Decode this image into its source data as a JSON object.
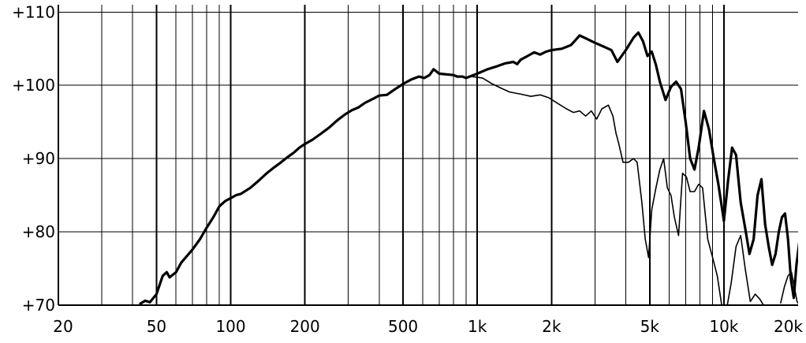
{
  "chart_data": {
    "type": "line",
    "title": "",
    "xlabel": "",
    "ylabel": "",
    "x_scale": "log",
    "xlim": [
      20,
      20000
    ],
    "ylim": [
      70,
      111
    ],
    "grid": true,
    "legend": "none",
    "x_ticks": [
      {
        "value": 20,
        "label": "20"
      },
      {
        "value": 50,
        "label": "50"
      },
      {
        "value": 100,
        "label": "100"
      },
      {
        "value": 200,
        "label": "200"
      },
      {
        "value": 500,
        "label": "500"
      },
      {
        "value": 1000,
        "label": "1k"
      },
      {
        "value": 2000,
        "label": "2k"
      },
      {
        "value": 5000,
        "label": "5k"
      },
      {
        "value": 10000,
        "label": "10k"
      },
      {
        "value": 20000,
        "label": "20k"
      }
    ],
    "y_ticks": [
      {
        "value": 70,
        "label": "+70"
      },
      {
        "value": 80,
        "label": "+80"
      },
      {
        "value": 90,
        "label": "+90"
      },
      {
        "value": 100,
        "label": "+100"
      },
      {
        "value": 110,
        "label": "+110"
      }
    ],
    "series": [
      {
        "style": "bold",
        "points": [
          [
            43,
            70.2
          ],
          [
            45,
            70.6
          ],
          [
            47,
            70.4
          ],
          [
            50,
            71.5
          ],
          [
            53,
            74.0
          ],
          [
            55,
            74.5
          ],
          [
            56.5,
            73.8
          ],
          [
            60,
            74.5
          ],
          [
            63,
            75.8
          ],
          [
            70,
            77.6
          ],
          [
            75,
            79.0
          ],
          [
            80,
            80.6
          ],
          [
            85,
            82.0
          ],
          [
            90,
            83.5
          ],
          [
            95,
            84.2
          ],
          [
            100,
            84.6
          ],
          [
            105,
            85.0
          ],
          [
            110,
            85.2
          ],
          [
            120,
            86.0
          ],
          [
            130,
            87.0
          ],
          [
            140,
            88.0
          ],
          [
            150,
            88.8
          ],
          [
            160,
            89.5
          ],
          [
            170,
            90.2
          ],
          [
            180,
            90.8
          ],
          [
            190,
            91.5
          ],
          [
            200,
            92.0
          ],
          [
            215,
            92.6
          ],
          [
            230,
            93.3
          ],
          [
            250,
            94.2
          ],
          [
            270,
            95.2
          ],
          [
            290,
            96.0
          ],
          [
            310,
            96.6
          ],
          [
            330,
            97.0
          ],
          [
            350,
            97.6
          ],
          [
            380,
            98.2
          ],
          [
            400,
            98.6
          ],
          [
            430,
            98.7
          ],
          [
            460,
            99.4
          ],
          [
            500,
            100.2
          ],
          [
            540,
            100.8
          ],
          [
            580,
            101.2
          ],
          [
            610,
            101.0
          ],
          [
            640,
            101.4
          ],
          [
            665,
            102.2
          ],
          [
            700,
            101.6
          ],
          [
            750,
            101.5
          ],
          [
            800,
            101.4
          ],
          [
            830,
            101.2
          ],
          [
            870,
            101.2
          ],
          [
            900,
            101.0
          ],
          [
            950,
            101.3
          ],
          [
            1000,
            101.6
          ],
          [
            1100,
            102.2
          ],
          [
            1200,
            102.6
          ],
          [
            1300,
            103.0
          ],
          [
            1400,
            103.2
          ],
          [
            1450,
            102.9
          ],
          [
            1500,
            103.5
          ],
          [
            1600,
            104.0
          ],
          [
            1700,
            104.5
          ],
          [
            1800,
            104.2
          ],
          [
            1900,
            104.6
          ],
          [
            2000,
            104.8
          ],
          [
            2200,
            105.0
          ],
          [
            2400,
            105.5
          ],
          [
            2600,
            106.8
          ],
          [
            2800,
            106.3
          ],
          [
            3000,
            105.8
          ],
          [
            3300,
            105.2
          ],
          [
            3500,
            104.8
          ],
          [
            3700,
            103.2
          ],
          [
            4000,
            104.8
          ],
          [
            4300,
            106.5
          ],
          [
            4500,
            107.2
          ],
          [
            4700,
            106.0
          ],
          [
            4900,
            104.0
          ],
          [
            5100,
            104.6
          ],
          [
            5300,
            102.8
          ],
          [
            5500,
            100.5
          ],
          [
            5800,
            98.0
          ],
          [
            6100,
            99.8
          ],
          [
            6400,
            100.5
          ],
          [
            6700,
            99.5
          ],
          [
            7000,
            95.0
          ],
          [
            7300,
            90.0
          ],
          [
            7600,
            88.5
          ],
          [
            7900,
            91.5
          ],
          [
            8300,
            96.5
          ],
          [
            8700,
            94.0
          ],
          [
            9100,
            90.0
          ],
          [
            9500,
            86.5
          ],
          [
            10000,
            81.5
          ],
          [
            10400,
            87.0
          ],
          [
            10800,
            91.5
          ],
          [
            11200,
            90.5
          ],
          [
            11700,
            84.0
          ],
          [
            12200,
            80.5
          ],
          [
            12700,
            77.0
          ],
          [
            13200,
            79.0
          ],
          [
            13700,
            85.0
          ],
          [
            14200,
            87.2
          ],
          [
            14700,
            81.0
          ],
          [
            15200,
            78.0
          ],
          [
            15700,
            75.5
          ],
          [
            16200,
            77.0
          ],
          [
            16700,
            80.0
          ],
          [
            17200,
            82.0
          ],
          [
            17700,
            82.5
          ],
          [
            18200,
            79.0
          ],
          [
            18700,
            73.5
          ],
          [
            19200,
            71.0
          ],
          [
            19700,
            75.5
          ],
          [
            20200,
            78.5
          ],
          [
            20700,
            79.5
          ],
          [
            21200,
            75.0
          ],
          [
            21500,
            73.5
          ]
        ]
      },
      {
        "style": "thin",
        "points": [
          [
            950,
            101.2
          ],
          [
            1050,
            101.0
          ],
          [
            1150,
            100.2
          ],
          [
            1250,
            99.6
          ],
          [
            1350,
            99.1
          ],
          [
            1500,
            98.8
          ],
          [
            1650,
            98.5
          ],
          [
            1800,
            98.7
          ],
          [
            1950,
            98.3
          ],
          [
            2150,
            97.4
          ],
          [
            2300,
            96.8
          ],
          [
            2450,
            96.3
          ],
          [
            2600,
            96.5
          ],
          [
            2750,
            95.8
          ],
          [
            2900,
            96.5
          ],
          [
            3050,
            95.4
          ],
          [
            3200,
            96.8
          ],
          [
            3400,
            97.3
          ],
          [
            3550,
            95.8
          ],
          [
            3650,
            93.5
          ],
          [
            3750,
            92.0
          ],
          [
            3900,
            89.5
          ],
          [
            4100,
            89.5
          ],
          [
            4300,
            90.0
          ],
          [
            4450,
            89.5
          ],
          [
            4650,
            84.0
          ],
          [
            4800,
            79.0
          ],
          [
            4950,
            76.5
          ],
          [
            5100,
            83.0
          ],
          [
            5300,
            86.0
          ],
          [
            5500,
            88.5
          ],
          [
            5700,
            90.0
          ],
          [
            5900,
            86.0
          ],
          [
            6100,
            85.0
          ],
          [
            6300,
            82.0
          ],
          [
            6550,
            79.5
          ],
          [
            6800,
            88.0
          ],
          [
            7050,
            87.5
          ],
          [
            7300,
            85.5
          ],
          [
            7600,
            85.5
          ],
          [
            7900,
            86.5
          ],
          [
            8200,
            86.0
          ],
          [
            8600,
            79.0
          ],
          [
            9000,
            76.5
          ],
          [
            9400,
            74.0
          ],
          [
            9800,
            70.0
          ],
          [
            10200,
            69.0
          ],
          [
            10700,
            73.0
          ],
          [
            11200,
            78.0
          ],
          [
            11700,
            79.5
          ],
          [
            12200,
            75.0
          ],
          [
            12800,
            70.5
          ],
          [
            13400,
            71.5
          ],
          [
            14000,
            70.8
          ],
          [
            14600,
            69.8
          ]
        ]
      },
      {
        "style": "thin",
        "points": [
          [
            17000,
            70.3
          ],
          [
            17600,
            72.5
          ],
          [
            18200,
            74.0
          ],
          [
            18800,
            74.5
          ],
          [
            19300,
            72.5
          ],
          [
            19800,
            70.5
          ],
          [
            20300,
            70.0
          ]
        ]
      }
    ]
  }
}
